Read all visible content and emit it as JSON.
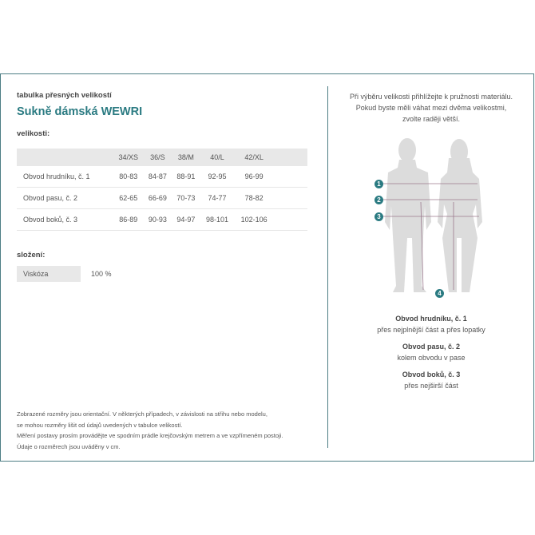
{
  "subtitle": "tabulka přesných velikostí",
  "title": "Sukně dámská WEWRI",
  "sizes_label": "velikosti:",
  "table": {
    "headers": [
      "",
      "34/XS",
      "36/S",
      "38/M",
      "40/L",
      "42/XL"
    ],
    "rows": [
      [
        "Obvod hrudníku, č. 1",
        "80-83",
        "84-87",
        "88-91",
        "92-95",
        "96-99"
      ],
      [
        "Obvod pasu, č. 2",
        "62-65",
        "66-69",
        "70-73",
        "74-77",
        "78-82"
      ],
      [
        "Obvod boků, č. 3",
        "86-89",
        "90-93",
        "94-97",
        "98-101",
        "102-106"
      ]
    ]
  },
  "composition_label": "složení:",
  "composition": {
    "material": "Viskóza",
    "percent": "100 %"
  },
  "footer": [
    "Zobrazené rozměry jsou orientační. V některých případech, v závislosti na střihu nebo modelu,",
    "se mohou rozměry lišit od údajů uvedených v tabulce velikostí.",
    "Měření postavy prosím provádějte ve spodním prádle krejčovským metrem a ve vzpřímeném postoji.",
    "Údaje o rozměrech jsou uváděny v cm."
  ],
  "advice": [
    "Při výběru velikosti přihlížejte k pružnosti materiálu.",
    "Pokud byste měli váhat mezi dvěma velikostmi,",
    "zvolte raději větší."
  ],
  "markers": [
    "1",
    "2",
    "3",
    "4"
  ],
  "legend": [
    {
      "title": "Obvod hrudníku, č. 1",
      "desc": "přes nejplnější část a přes lopatky"
    },
    {
      "title": "Obvod pasu, č. 2",
      "desc": "kolem obvodu v pase"
    },
    {
      "title": "Obvod boků, č. 3",
      "desc": "přes nejširší část"
    }
  ],
  "colors": {
    "accent": "#2b7b82",
    "border": "#4d7e84"
  }
}
